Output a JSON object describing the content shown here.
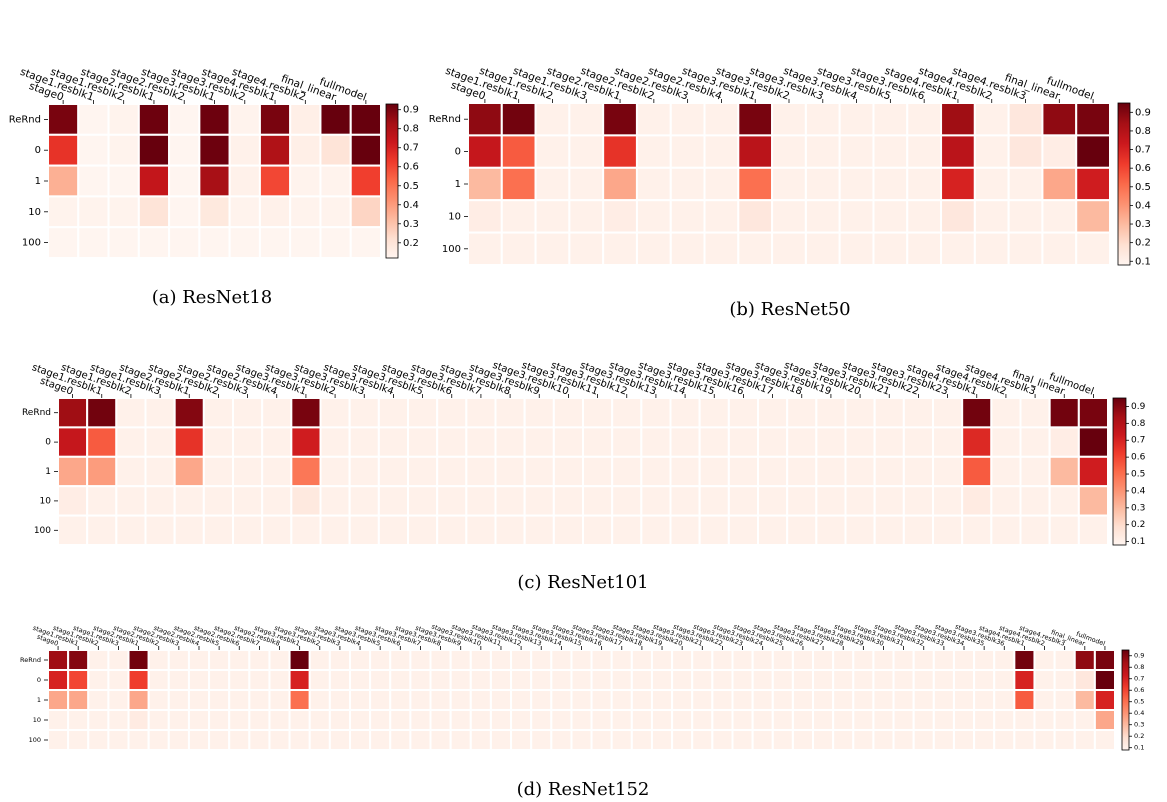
{
  "chart_data": [
    {
      "type": "heatmap",
      "caption": "(a) ResNet18",
      "categories": [
        "stage0",
        "stage1.resblk1",
        "stage1.resblk2",
        "stage2.resblk1",
        "stage2.resblk2",
        "stage3.resblk1",
        "stage3.resblk2",
        "stage4.resblk1",
        "stage4.resblk2",
        "final_linear",
        "fullmodel"
      ],
      "y_categories": [
        "ReRnd",
        "0",
        "1",
        "10",
        "100"
      ],
      "values": [
        [
          0.9,
          0.12,
          0.13,
          0.92,
          0.12,
          0.92,
          0.13,
          0.9,
          0.15,
          0.93,
          0.93
        ],
        [
          0.65,
          0.12,
          0.13,
          0.93,
          0.12,
          0.92,
          0.14,
          0.8,
          0.15,
          0.2,
          0.93
        ],
        [
          0.35,
          0.12,
          0.12,
          0.75,
          0.12,
          0.82,
          0.14,
          0.6,
          0.13,
          0.13,
          0.62
        ],
        [
          0.13,
          0.13,
          0.13,
          0.2,
          0.12,
          0.18,
          0.13,
          0.14,
          0.13,
          0.13,
          0.25
        ],
        [
          0.12,
          0.12,
          0.12,
          0.12,
          0.12,
          0.12,
          0.12,
          0.12,
          0.12,
          0.12,
          0.12
        ]
      ],
      "clim": [
        0.12,
        0.93
      ],
      "cticks": [
        0.2,
        0.3,
        0.4,
        0.5,
        0.6,
        0.7,
        0.8,
        0.9
      ],
      "colors": [
        "#fff5f0",
        "#fee0d2",
        "#fcbba1",
        "#fc9272",
        "#fb6a4a",
        "#ef3b2c",
        "#cb181d",
        "#a50f15",
        "#67000d"
      ]
    },
    {
      "type": "heatmap",
      "caption": "(b) ResNet50",
      "categories": [
        "stage0",
        "stage1.resblk1",
        "stage1.resblk2",
        "stage1.resblk3",
        "stage2.resblk1",
        "stage2.resblk2",
        "stage2.resblk3",
        "stage2.resblk4",
        "stage3.resblk1",
        "stage3.resblk2",
        "stage3.resblk3",
        "stage3.resblk4",
        "stage3.resblk5",
        "stage3.resblk6",
        "stage4.resblk1",
        "stage4.resblk2",
        "stage4.resblk3",
        "final_linear",
        "fullmodel"
      ],
      "y_categories": [
        "ReRnd",
        "0",
        "1",
        "10",
        "100"
      ],
      "values": [
        [
          0.88,
          0.93,
          0.1,
          0.1,
          0.92,
          0.1,
          0.1,
          0.1,
          0.92,
          0.1,
          0.1,
          0.1,
          0.1,
          0.1,
          0.85,
          0.1,
          0.15,
          0.88,
          0.92
        ],
        [
          0.75,
          0.55,
          0.1,
          0.1,
          0.65,
          0.1,
          0.1,
          0.1,
          0.78,
          0.1,
          0.1,
          0.1,
          0.1,
          0.1,
          0.78,
          0.1,
          0.15,
          0.12,
          0.95
        ],
        [
          0.3,
          0.5,
          0.1,
          0.1,
          0.35,
          0.1,
          0.1,
          0.1,
          0.5,
          0.1,
          0.1,
          0.1,
          0.1,
          0.1,
          0.7,
          0.1,
          0.1,
          0.35,
          0.72
        ],
        [
          0.12,
          0.1,
          0.1,
          0.1,
          0.12,
          0.1,
          0.1,
          0.1,
          0.15,
          0.1,
          0.1,
          0.1,
          0.1,
          0.1,
          0.15,
          0.1,
          0.1,
          0.1,
          0.3
        ],
        [
          0.1,
          0.1,
          0.1,
          0.1,
          0.1,
          0.1,
          0.1,
          0.1,
          0.1,
          0.1,
          0.1,
          0.1,
          0.1,
          0.1,
          0.1,
          0.1,
          0.1,
          0.1,
          0.1
        ]
      ],
      "clim": [
        0.08,
        0.95
      ],
      "cticks": [
        0.1,
        0.2,
        0.3,
        0.4,
        0.5,
        0.6,
        0.7,
        0.8,
        0.9
      ],
      "colors": [
        "#fff5f0",
        "#fee0d2",
        "#fcbba1",
        "#fc9272",
        "#fb6a4a",
        "#ef3b2c",
        "#cb181d",
        "#a50f15",
        "#67000d"
      ]
    },
    {
      "type": "heatmap",
      "caption": "(c) ResNet101",
      "categories": [
        "stage0",
        "stage1.resblk1",
        "stage1.resblk2",
        "stage1.resblk3",
        "stage2.resblk1",
        "stage2.resblk2",
        "stage2.resblk3",
        "stage2.resblk4",
        "stage3.resblk1",
        "stage3.resblk2",
        "stage3.resblk3",
        "stage3.resblk4",
        "stage3.resblk5",
        "stage3.resblk6",
        "stage3.resblk7",
        "stage3.resblk8",
        "stage3.resblk9",
        "stage3.resblk10",
        "stage3.resblk11",
        "stage3.resblk12",
        "stage3.resblk13",
        "stage3.resblk14",
        "stage3.resblk15",
        "stage3.resblk16",
        "stage3.resblk17",
        "stage3.resblk18",
        "stage3.resblk19",
        "stage3.resblk20",
        "stage3.resblk21",
        "stage3.resblk22",
        "stage3.resblk23",
        "stage4.resblk1",
        "stage4.resblk2",
        "stage4.resblk3",
        "final_linear",
        "fullmodel"
      ],
      "y_categories": [
        "ReRnd",
        "0",
        "1",
        "10",
        "100"
      ],
      "values": [
        [
          0.85,
          0.93,
          0.1,
          0.1,
          0.9,
          0.1,
          0.1,
          0.1,
          0.92,
          0.1,
          0.1,
          0.1,
          0.1,
          0.1,
          0.1,
          0.1,
          0.1,
          0.1,
          0.1,
          0.1,
          0.1,
          0.1,
          0.1,
          0.1,
          0.1,
          0.1,
          0.1,
          0.1,
          0.1,
          0.1,
          0.1,
          0.93,
          0.1,
          0.1,
          0.93,
          0.92
        ],
        [
          0.75,
          0.55,
          0.1,
          0.1,
          0.65,
          0.1,
          0.1,
          0.1,
          0.72,
          0.1,
          0.1,
          0.1,
          0.1,
          0.1,
          0.1,
          0.1,
          0.1,
          0.1,
          0.1,
          0.1,
          0.1,
          0.1,
          0.1,
          0.1,
          0.1,
          0.1,
          0.1,
          0.1,
          0.1,
          0.1,
          0.1,
          0.68,
          0.1,
          0.1,
          0.12,
          0.95
        ],
        [
          0.35,
          0.38,
          0.1,
          0.1,
          0.35,
          0.1,
          0.1,
          0.1,
          0.48,
          0.1,
          0.1,
          0.1,
          0.1,
          0.1,
          0.1,
          0.1,
          0.1,
          0.1,
          0.1,
          0.1,
          0.1,
          0.1,
          0.1,
          0.1,
          0.1,
          0.1,
          0.1,
          0.1,
          0.1,
          0.1,
          0.1,
          0.55,
          0.1,
          0.1,
          0.3,
          0.72
        ],
        [
          0.12,
          0.1,
          0.1,
          0.1,
          0.1,
          0.1,
          0.1,
          0.1,
          0.14,
          0.1,
          0.1,
          0.1,
          0.1,
          0.1,
          0.1,
          0.1,
          0.1,
          0.1,
          0.1,
          0.1,
          0.1,
          0.1,
          0.1,
          0.1,
          0.1,
          0.1,
          0.1,
          0.1,
          0.1,
          0.1,
          0.1,
          0.13,
          0.1,
          0.1,
          0.1,
          0.3
        ],
        [
          0.1,
          0.1,
          0.1,
          0.1,
          0.1,
          0.1,
          0.1,
          0.1,
          0.1,
          0.1,
          0.1,
          0.1,
          0.1,
          0.1,
          0.1,
          0.1,
          0.1,
          0.1,
          0.1,
          0.1,
          0.1,
          0.1,
          0.1,
          0.1,
          0.1,
          0.1,
          0.1,
          0.1,
          0.1,
          0.1,
          0.1,
          0.1,
          0.1,
          0.1,
          0.1,
          0.1
        ]
      ],
      "clim": [
        0.08,
        0.95
      ],
      "cticks": [
        0.1,
        0.2,
        0.3,
        0.4,
        0.5,
        0.6,
        0.7,
        0.8,
        0.9
      ],
      "colors": [
        "#fff5f0",
        "#fee0d2",
        "#fcbba1",
        "#fc9272",
        "#fb6a4a",
        "#ef3b2c",
        "#cb181d",
        "#a50f15",
        "#67000d"
      ]
    },
    {
      "type": "heatmap",
      "caption": "(d) ResNet152",
      "categories": [
        "stage0",
        "stage1.resblk1",
        "stage1.resblk2",
        "stage1.resblk3",
        "stage2.resblk1",
        "stage2.resblk2",
        "stage2.resblk3",
        "stage2.resblk4",
        "stage2.resblk5",
        "stage2.resblk6",
        "stage2.resblk7",
        "stage2.resblk8",
        "stage3.resblk1",
        "stage3.resblk2",
        "stage3.resblk3",
        "stage3.resblk4",
        "stage3.resblk5",
        "stage3.resblk6",
        "stage3.resblk7",
        "stage3.resblk8",
        "stage3.resblk9",
        "stage3.resblk10",
        "stage3.resblk11",
        "stage3.resblk12",
        "stage3.resblk13",
        "stage3.resblk14",
        "stage3.resblk15",
        "stage3.resblk16",
        "stage3.resblk17",
        "stage3.resblk18",
        "stage3.resblk19",
        "stage3.resblk20",
        "stage3.resblk21",
        "stage3.resblk22",
        "stage3.resblk23",
        "stage3.resblk24",
        "stage3.resblk25",
        "stage3.resblk26",
        "stage3.resblk27",
        "stage3.resblk28",
        "stage3.resblk29",
        "stage3.resblk30",
        "stage3.resblk31",
        "stage3.resblk32",
        "stage3.resblk33",
        "stage3.resblk34",
        "stage3.resblk35",
        "stage3.resblk36",
        "stage4.resblk1",
        "stage4.resblk2",
        "stage4.resblk3",
        "final_linear",
        "fullmodel"
      ],
      "y_categories": [
        "ReRnd",
        "0",
        "1",
        "10",
        "100"
      ],
      "values": [
        [
          0.85,
          0.9,
          0.1,
          0.1,
          0.93,
          0.1,
          0.1,
          0.1,
          0.1,
          0.1,
          0.1,
          0.1,
          0.95,
          0.1,
          0.1,
          0.1,
          0.1,
          0.1,
          0.1,
          0.1,
          0.1,
          0.1,
          0.1,
          0.1,
          0.1,
          0.1,
          0.1,
          0.1,
          0.1,
          0.1,
          0.1,
          0.1,
          0.1,
          0.1,
          0.1,
          0.1,
          0.1,
          0.1,
          0.1,
          0.1,
          0.1,
          0.1,
          0.1,
          0.1,
          0.1,
          0.1,
          0.1,
          0.1,
          0.93,
          0.1,
          0.1,
          0.88,
          0.92
        ],
        [
          0.7,
          0.6,
          0.1,
          0.1,
          0.62,
          0.1,
          0.1,
          0.1,
          0.1,
          0.1,
          0.1,
          0.1,
          0.7,
          0.1,
          0.1,
          0.1,
          0.1,
          0.1,
          0.1,
          0.1,
          0.1,
          0.1,
          0.1,
          0.1,
          0.1,
          0.1,
          0.1,
          0.1,
          0.1,
          0.1,
          0.1,
          0.1,
          0.1,
          0.1,
          0.1,
          0.1,
          0.1,
          0.1,
          0.1,
          0.1,
          0.1,
          0.1,
          0.1,
          0.1,
          0.1,
          0.1,
          0.1,
          0.1,
          0.7,
          0.1,
          0.1,
          0.15,
          0.95
        ],
        [
          0.35,
          0.35,
          0.1,
          0.1,
          0.35,
          0.1,
          0.1,
          0.1,
          0.1,
          0.1,
          0.1,
          0.1,
          0.5,
          0.1,
          0.1,
          0.1,
          0.1,
          0.1,
          0.1,
          0.1,
          0.1,
          0.1,
          0.1,
          0.1,
          0.1,
          0.1,
          0.1,
          0.1,
          0.1,
          0.1,
          0.1,
          0.1,
          0.1,
          0.1,
          0.1,
          0.1,
          0.1,
          0.1,
          0.1,
          0.1,
          0.1,
          0.1,
          0.1,
          0.1,
          0.1,
          0.1,
          0.1,
          0.1,
          0.55,
          0.1,
          0.1,
          0.3,
          0.7
        ],
        [
          0.1,
          0.1,
          0.1,
          0.1,
          0.13,
          0.1,
          0.1,
          0.1,
          0.1,
          0.1,
          0.1,
          0.1,
          0.1,
          0.1,
          0.1,
          0.1,
          0.1,
          0.1,
          0.1,
          0.1,
          0.1,
          0.1,
          0.1,
          0.1,
          0.1,
          0.1,
          0.1,
          0.1,
          0.1,
          0.1,
          0.1,
          0.1,
          0.1,
          0.1,
          0.1,
          0.1,
          0.1,
          0.1,
          0.1,
          0.1,
          0.1,
          0.1,
          0.1,
          0.1,
          0.1,
          0.1,
          0.1,
          0.1,
          0.1,
          0.1,
          0.1,
          0.1,
          0.35
        ],
        [
          0.1,
          0.1,
          0.1,
          0.1,
          0.1,
          0.1,
          0.1,
          0.1,
          0.1,
          0.1,
          0.1,
          0.1,
          0.1,
          0.1,
          0.1,
          0.1,
          0.1,
          0.1,
          0.1,
          0.1,
          0.1,
          0.1,
          0.1,
          0.1,
          0.1,
          0.1,
          0.1,
          0.1,
          0.1,
          0.1,
          0.1,
          0.1,
          0.1,
          0.1,
          0.1,
          0.1,
          0.1,
          0.1,
          0.1,
          0.1,
          0.1,
          0.1,
          0.1,
          0.1,
          0.1,
          0.1,
          0.1,
          0.1,
          0.1,
          0.1,
          0.1,
          0.1,
          0.1
        ]
      ],
      "clim": [
        0.08,
        0.95
      ],
      "cticks": [
        0.1,
        0.2,
        0.3,
        0.4,
        0.5,
        0.6,
        0.7,
        0.8,
        0.9
      ],
      "colors": [
        "#fff5f0",
        "#fee0d2",
        "#fcbba1",
        "#fc9272",
        "#fb6a4a",
        "#ef3b2c",
        "#cb181d",
        "#a50f15",
        "#67000d"
      ]
    }
  ]
}
